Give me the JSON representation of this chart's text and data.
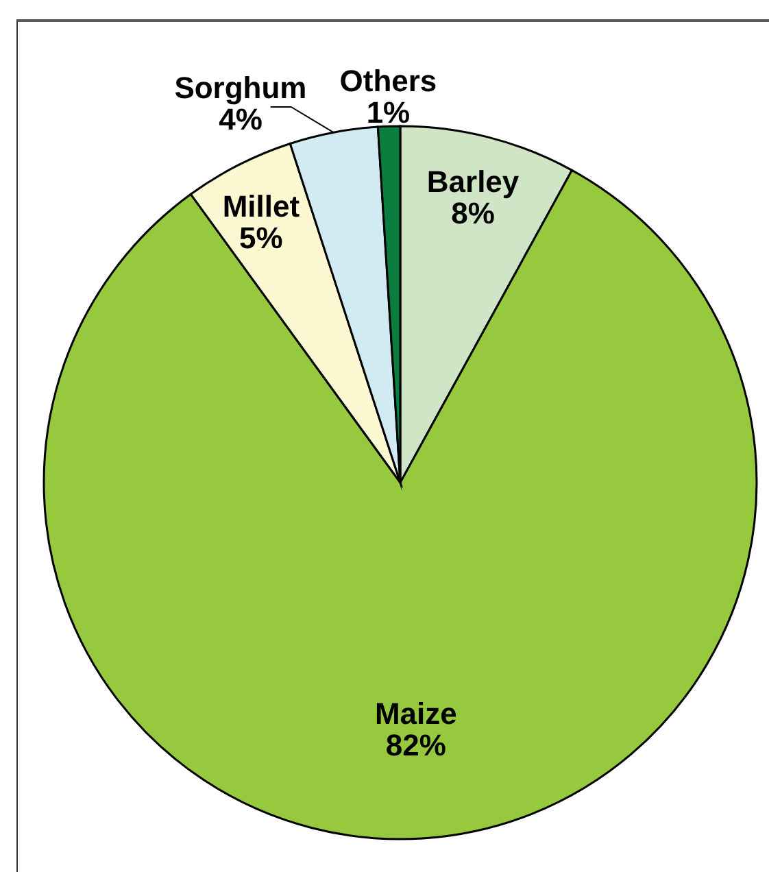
{
  "chart_data": {
    "type": "pie",
    "categories": [
      "Barley",
      "Maize",
      "Millet",
      "Sorghum",
      "Others"
    ],
    "values": [
      8,
      82,
      5,
      4,
      1
    ],
    "colors": [
      "#d0e5c5",
      "#96c93d",
      "#fcf8d2",
      "#d2eaf2",
      "#0b7d3e"
    ],
    "value_labels": [
      "8%",
      "82%",
      "5%",
      "4%",
      "1%"
    ]
  }
}
